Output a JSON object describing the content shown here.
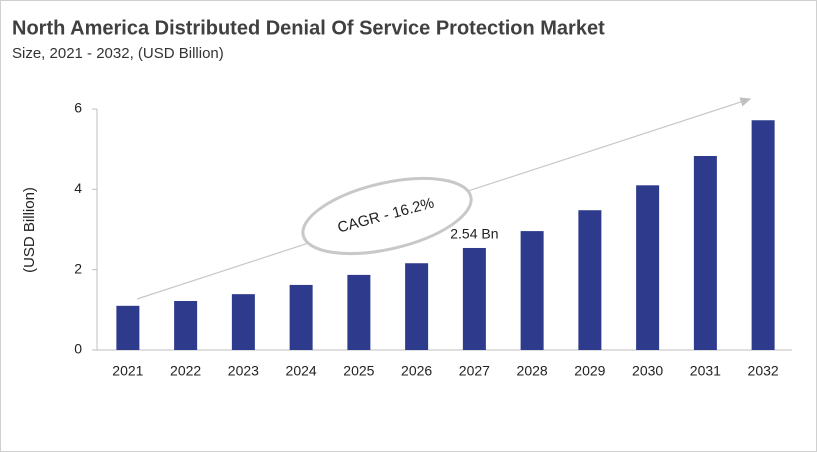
{
  "chart_data": {
    "type": "bar",
    "title": "North America Distributed Denial Of Service Protection Market",
    "subtitle": "Size, 2021 - 2032, (USD Billion)",
    "y_label": "(USD Billion)",
    "annotation": "CAGR - 16.2%",
    "categories": [
      "2021",
      "2022",
      "2023",
      "2024",
      "2025",
      "2026",
      "2027",
      "2028",
      "2029",
      "2030",
      "2031",
      "2032"
    ],
    "values": [
      1.1,
      1.22,
      1.39,
      1.62,
      1.87,
      2.16,
      2.54,
      2.96,
      3.48,
      4.1,
      4.83,
      5.72
    ],
    "value_labels": [
      null,
      null,
      null,
      null,
      null,
      null,
      "2.54 Bn",
      null,
      null,
      null,
      null,
      null
    ],
    "color": "#2e3a8c",
    "ylim": [
      0,
      6
    ],
    "yticks": [
      0,
      2,
      4,
      6
    ],
    "grid": false
  }
}
